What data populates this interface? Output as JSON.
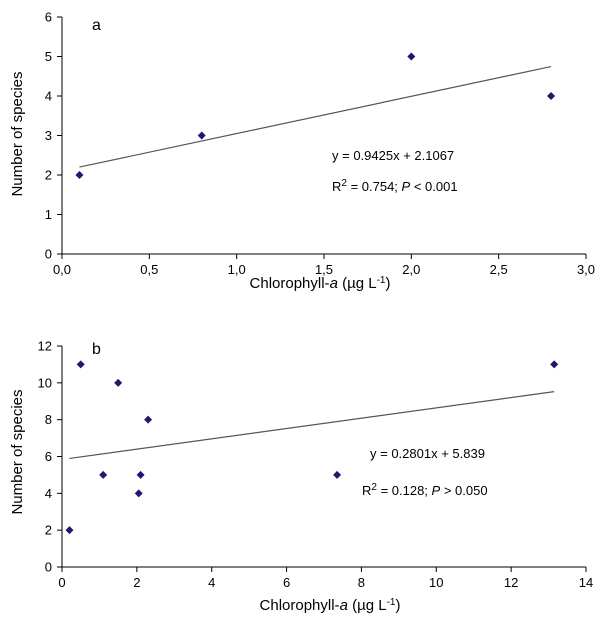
{
  "chart_data": [
    {
      "type": "scatter",
      "panel_label": "a",
      "xlabel_prefix": "Chlorophyll-",
      "xlabel_italic": "a",
      "xlabel_suffix": " (µg L",
      "xlabel_sup": "-1",
      "xlabel_close": ")",
      "ylabel": "Number of species",
      "xlim": [
        0,
        3
      ],
      "ylim": [
        0,
        6
      ],
      "x_ticks": [
        0,
        0.5,
        1,
        1.5,
        2,
        2.5,
        3
      ],
      "x_tick_labels": [
        "0,0",
        "0,5",
        "1,0",
        "1,5",
        "2,0",
        "2,5",
        "3,0"
      ],
      "y_ticks": [
        0,
        1,
        2,
        3,
        4,
        5,
        6
      ],
      "y_tick_labels": [
        "0",
        "1",
        "2",
        "3",
        "4",
        "5",
        "6"
      ],
      "points": [
        {
          "x": 0.1,
          "y": 2
        },
        {
          "x": 0.8,
          "y": 3
        },
        {
          "x": 2.0,
          "y": 5
        },
        {
          "x": 2.8,
          "y": 4
        }
      ],
      "trendline": {
        "slope": 0.9425,
        "intercept": 2.1067,
        "x_range": [
          0.1,
          2.8
        ]
      },
      "equation": "y = 0.9425x + 2.1067",
      "r2_prefix": "R",
      "r2_sup": "2",
      "r2_value": " = 0.754; ",
      "p_italic": "P",
      "p_value": " < 0.001",
      "marker_color": "#1a1a6e",
      "grid": false
    },
    {
      "type": "scatter",
      "panel_label": "b",
      "xlabel_prefix": "Chlorophyll-",
      "xlabel_italic": "a",
      "xlabel_suffix": " (µg L",
      "xlabel_sup": "-1",
      "xlabel_close": ")",
      "ylabel": "Number of species",
      "xlim": [
        0,
        14
      ],
      "ylim": [
        0,
        12
      ],
      "x_ticks": [
        0,
        2,
        4,
        6,
        8,
        10,
        12,
        14
      ],
      "x_tick_labels": [
        "0",
        "2",
        "4",
        "6",
        "8",
        "10",
        "12",
        "14"
      ],
      "y_ticks": [
        0,
        2,
        4,
        6,
        8,
        10,
        12
      ],
      "y_tick_labels": [
        "0",
        "2",
        "4",
        "6",
        "8",
        "10",
        "12"
      ],
      "points": [
        {
          "x": 0.2,
          "y": 2
        },
        {
          "x": 0.5,
          "y": 11
        },
        {
          "x": 1.1,
          "y": 5
        },
        {
          "x": 1.5,
          "y": 10
        },
        {
          "x": 2.05,
          "y": 4
        },
        {
          "x": 2.1,
          "y": 5
        },
        {
          "x": 2.3,
          "y": 8
        },
        {
          "x": 7.35,
          "y": 5
        },
        {
          "x": 13.15,
          "y": 11
        }
      ],
      "trendline": {
        "slope": 0.2801,
        "intercept": 5.839,
        "x_range": [
          0.2,
          13.15
        ]
      },
      "equation": "y = 0.2801x + 5.839",
      "r2_prefix": "R",
      "r2_sup": "2",
      "r2_value": " = 0.128; ",
      "p_italic": "P",
      "p_value": " > 0.050",
      "marker_color": "#1a1a6e",
      "grid": false
    }
  ]
}
